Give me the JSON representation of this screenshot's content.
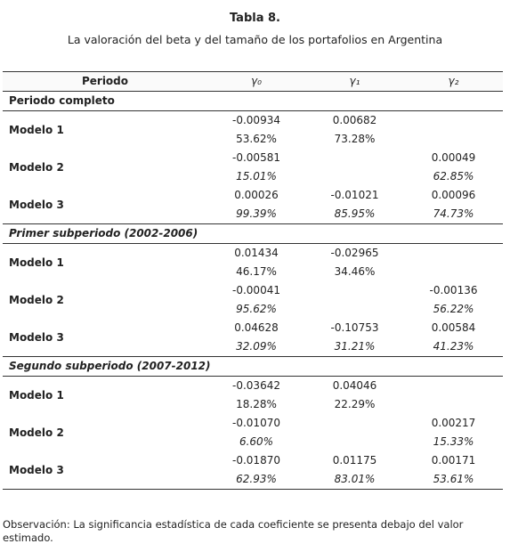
{
  "title": "Tabla 8.",
  "subtitle": "La valoración del beta y del tamaño de los portafolios en Argentina",
  "table": {
    "header": [
      "Periodo",
      "γ₀",
      "γ₁",
      "γ₂"
    ],
    "sections": [
      {
        "title": "Periodo completo",
        "italic_title": false,
        "rows": [
          {
            "label": "Modelo 1",
            "coef": [
              "-0.00934",
              "0.00682",
              null
            ],
            "sig": [
              "53.62%",
              "73.28%",
              null
            ],
            "italic_sig": false
          },
          {
            "label": "Modelo 2",
            "coef": [
              "-0.00581",
              null,
              "0.00049"
            ],
            "sig": [
              "15.01%",
              null,
              "62.85%"
            ],
            "italic_sig": true
          },
          {
            "label": "Modelo 3",
            "coef": [
              "0.00026",
              "-0.01021",
              "0.00096"
            ],
            "sig": [
              "99.39%",
              "85.95%",
              "74.73%"
            ],
            "italic_sig": true
          }
        ]
      },
      {
        "title": "Primer subperiodo (2002-2006)",
        "italic_title": true,
        "rows": [
          {
            "label": "Modelo 1",
            "coef": [
              "0.01434",
              "-0.02965",
              null
            ],
            "sig": [
              "46.17%",
              "34.46%",
              null
            ],
            "italic_sig": false
          },
          {
            "label": "Modelo 2",
            "coef": [
              "-0.00041",
              null,
              "-0.00136"
            ],
            "sig": [
              "95.62%",
              null,
              "56.22%"
            ],
            "italic_sig": true
          },
          {
            "label": "Modelo 3",
            "coef": [
              "0.04628",
              "-0.10753",
              "0.00584"
            ],
            "sig": [
              "32.09%",
              "31.21%",
              "41.23%"
            ],
            "italic_sig": true
          }
        ]
      },
      {
        "title": "Segundo subperiodo (2007-2012)",
        "italic_title": true,
        "rows": [
          {
            "label": "Modelo 1",
            "coef": [
              "-0.03642",
              "0.04046",
              null
            ],
            "sig": [
              "18.28%",
              "22.29%",
              null
            ],
            "italic_sig": false
          },
          {
            "label": "Modelo 2",
            "coef": [
              "-0.01070",
              null,
              "0.00217"
            ],
            "sig": [
              "6.60%",
              null,
              "15.33%"
            ],
            "italic_sig": true
          },
          {
            "label": "Modelo 3",
            "coef": [
              "-0.01870",
              "0.01175",
              "0.00171"
            ],
            "sig": [
              "62.93%",
              "83.01%",
              "53.61%"
            ],
            "italic_sig": true
          }
        ]
      }
    ]
  },
  "note": "Observación: La significancia estadística de cada coeficiente  se presenta debajo del valor estimado."
}
